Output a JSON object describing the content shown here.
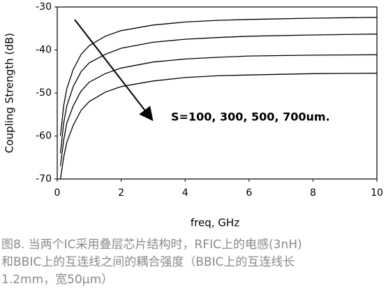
{
  "chart_data": {
    "type": "line",
    "xlabel": "freq, GHz",
    "ylabel": "Coupling Strength (dB)",
    "annotation": "S=100, 300, 500, 700um.",
    "x": [
      0.1,
      0.2,
      0.3,
      0.5,
      0.75,
      1,
      1.5,
      2,
      3,
      4,
      5,
      6,
      8,
      10
    ],
    "series": [
      {
        "color": "#000000",
        "values": [
          -60,
          -53,
          -49,
          -44.5,
          -41,
          -39,
          -36.8,
          -35.5,
          -34.2,
          -33.5,
          -33.1,
          -32.9,
          -32.6,
          -32.4
        ]
      },
      {
        "color": "#000000",
        "values": [
          -64,
          -57,
          -53,
          -48.5,
          -45,
          -43,
          -41,
          -39.6,
          -38.2,
          -37.5,
          -37.1,
          -36.8,
          -36.5,
          -36.3
        ]
      },
      {
        "color": "#000000",
        "values": [
          -67,
          -61,
          -57,
          -53,
          -49.5,
          -47.5,
          -45.5,
          -44.2,
          -42.8,
          -42.1,
          -41.7,
          -41.4,
          -41.2,
          -41.1
        ]
      },
      {
        "color": "#000000",
        "values": [
          -70,
          -65,
          -61.5,
          -57.5,
          -54,
          -52,
          -49.8,
          -48.5,
          -47.2,
          -46.4,
          -46,
          -45.8,
          -45.5,
          -45.4
        ]
      }
    ],
    "xlim": [
      0,
      10
    ],
    "xticks": [
      0,
      2,
      4,
      6,
      8,
      10
    ],
    "ylim": [
      -70,
      -30
    ],
    "yticks": [
      -70,
      -60,
      -50,
      -40,
      -30
    ]
  },
  "caption": [
    "图8. 当两个IC采用叠层芯片结构时，RFIC上的电感(3nH)",
    "和BBIC上的互连线之间的耦合强度（BBIC上的互连线长",
    "1.2mm，宽50μm）"
  ]
}
